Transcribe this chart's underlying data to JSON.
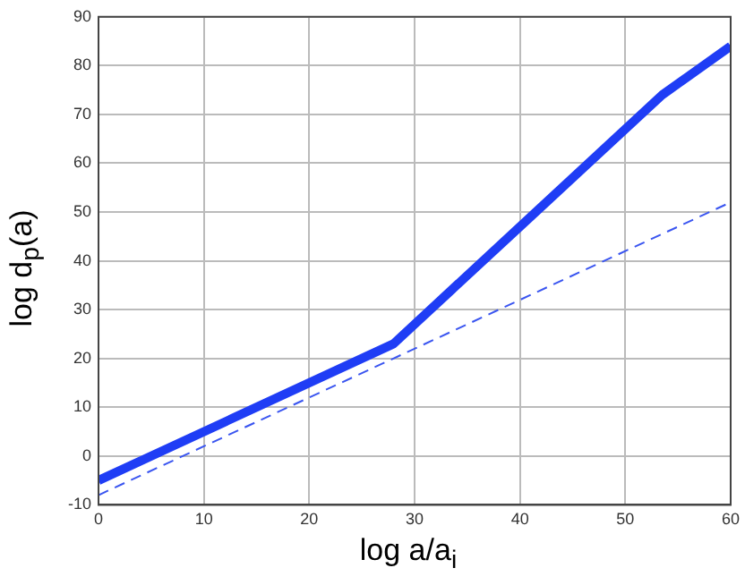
{
  "chart_data": {
    "type": "line",
    "xlabel": "log a/a$_{i}$",
    "ylabel": "log d$_{p}$(a)",
    "xlim": [
      0,
      60
    ],
    "xticks": [
      0,
      10,
      20,
      30,
      40,
      50,
      60
    ],
    "ylim": [
      -10,
      90
    ],
    "yticks": [
      -10,
      0,
      10,
      20,
      30,
      40,
      50,
      60,
      70,
      80,
      90
    ],
    "grid": true,
    "marker": "none",
    "series": [
      {
        "color": "#1f3df5",
        "x": [
          0,
          28,
          53.5,
          60
        ],
        "values": [
          -5,
          23,
          74,
          84
        ],
        "line_style": "solid"
      },
      {
        "color": "#3a55f0",
        "x": [
          0,
          60
        ],
        "values": [
          -8,
          52
        ],
        "line_style": "dashed"
      }
    ]
  }
}
